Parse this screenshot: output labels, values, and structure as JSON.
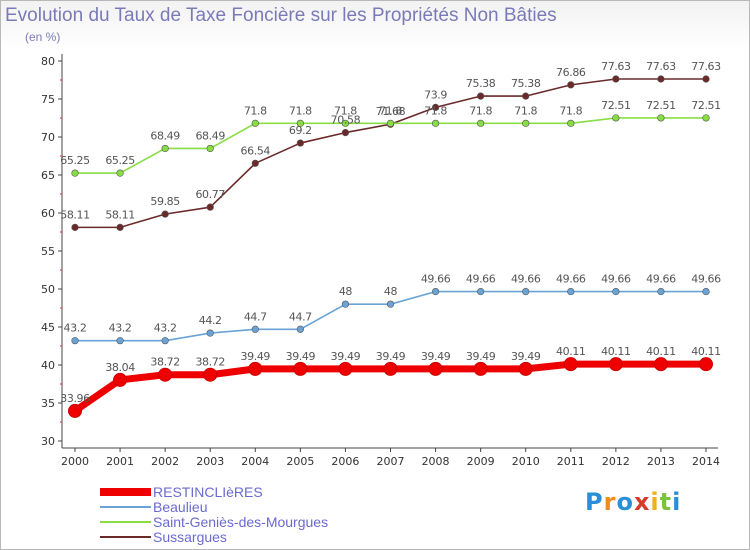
{
  "chart_data": {
    "type": "line",
    "title": "Evolution du Taux de Taxe Foncière sur les Propriétés Non Bâties",
    "subtitle": "(en %)",
    "x": [
      "2000",
      "2001",
      "2002",
      "2003",
      "2004",
      "2005",
      "2006",
      "2007",
      "2008",
      "2009",
      "2010",
      "2011",
      "2012",
      "2013",
      "2014"
    ],
    "ylim": [
      30,
      80
    ],
    "yticks": [
      30,
      35,
      40,
      45,
      50,
      55,
      60,
      65,
      70,
      75,
      80
    ],
    "grid": false,
    "legend_position": "bottom-left",
    "series": [
      {
        "name": "RESTINCLIèRES",
        "color": "#ee0000",
        "values": [
          33.96,
          38.04,
          38.72,
          38.72,
          39.49,
          39.49,
          39.49,
          39.49,
          39.49,
          39.49,
          39.49,
          40.11,
          40.11,
          40.11,
          40.11
        ],
        "labels": [
          "33.96",
          "38.04",
          "38.72",
          "38.72",
          "39.49",
          "39.49",
          "39.49",
          "39.49",
          "39.49",
          "39.49",
          "39.49",
          "40.11",
          "40.11",
          "40.11",
          "40.11"
        ]
      },
      {
        "name": "Beaulieu",
        "color": "#6aa3d5",
        "values": [
          43.2,
          43.2,
          43.2,
          44.2,
          44.7,
          44.7,
          48,
          48,
          49.66,
          49.66,
          49.66,
          49.66,
          49.66,
          49.66,
          49.66
        ],
        "labels": [
          "43.2",
          "43.2",
          "43.2",
          "44.2",
          "44.7",
          "44.7",
          "48",
          "48",
          "49.66",
          "49.66",
          "49.66",
          "49.66",
          "49.66",
          "49.66",
          "49.66"
        ]
      },
      {
        "name": "Saint-Geniès-des-Mourgues",
        "color": "#88dd44",
        "values": [
          65.25,
          65.25,
          68.49,
          68.49,
          71.8,
          71.8,
          71.8,
          71.8,
          71.8,
          71.8,
          71.8,
          71.8,
          72.51,
          72.51,
          72.51
        ],
        "labels": [
          "65.25",
          "65.25",
          "68.49",
          "68.49",
          "71.8",
          "71.8",
          "71.8",
          "71.8",
          "71.8",
          "71.8",
          "71.8",
          "71.8",
          "72.51",
          "72.51",
          "72.51"
        ]
      },
      {
        "name": "Sussargues",
        "color": "#6b2a2a",
        "values": [
          58.11,
          58.11,
          59.85,
          60.77,
          66.54,
          69.2,
          70.58,
          71.68,
          73.9,
          75.38,
          75.38,
          76.86,
          77.63,
          77.63,
          77.63
        ],
        "labels": [
          "58.11",
          "58.11",
          "59.85",
          "60.77",
          "66.54",
          "69.2",
          "70.58",
          "71.68",
          "73.9",
          "75.38",
          "75.38",
          "76.86",
          "77.63",
          "77.63",
          "77.63"
        ]
      }
    ]
  },
  "legend": {
    "items": [
      {
        "label": "RESTINCLIèRES",
        "color": "#ee0000",
        "text_color": "#6a6ad0"
      },
      {
        "label": "Beaulieu",
        "color": "#6aa3d5",
        "text_color": "#6a6ad0"
      },
      {
        "label": "Saint-Geniès-des-Mourgues",
        "color": "#88dd44",
        "text_color": "#6a6ad0"
      },
      {
        "label": "Sussargues",
        "color": "#6b2a2a",
        "text_color": "#6a6ad0"
      }
    ]
  },
  "logo": {
    "letters": [
      "P",
      "r",
      "o",
      "x",
      "i",
      "t",
      "i"
    ],
    "colors": [
      "#2a8fd6",
      "#f08c1e",
      "#2a8fd6",
      "#d93a2a",
      "#f0b01e",
      "#7cc242",
      "#2a8fd6"
    ]
  }
}
